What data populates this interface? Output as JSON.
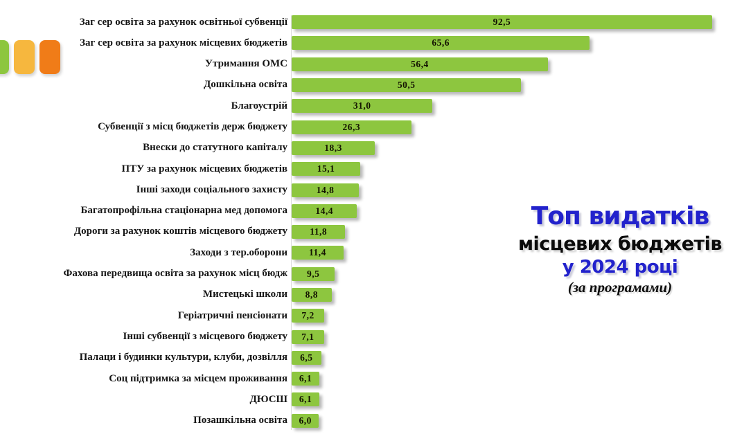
{
  "chart_data": {
    "type": "bar",
    "orientation": "horizontal",
    "title": "Топ видатків місцевих бюджетів у 2024 році (за програмами)",
    "xlabel": "",
    "ylabel": "",
    "xlim": [
      0,
      100
    ],
    "grid": false,
    "legend": false,
    "bar_color": "#8DC63F",
    "value_text_color": "#131300",
    "categories": [
      "Заг сер освіта за рахунок освітньої субвенції",
      "Заг сер освіта за рахунок місцевих бюджетів",
      "Утримання ОМС",
      "Дошкільна освіта",
      "Благоустрій",
      "Субвенції з місц бюджетів держ бюджету",
      "Внески до статутного капіталу",
      "ПТУ за рахунок місцевих бюджетів",
      "Інші заходи соціального захисту",
      "Багатопрофільна стаціонарна мед допомога",
      "Дороги за рахунок коштів місцевого бюджету",
      "Заходи з тер.оборони",
      "Фахова передвища освіта за рахунок місц бюдж",
      "Мистецькі школи",
      "Геріатричні пенсіонати",
      "Інші субвенції з місцевого бюджету",
      "Палаци і будинки культури, клуби, дозвілля",
      "Соц підтримка за місцем проживання",
      "ДЮСШ",
      "Позашкільна освіта"
    ],
    "values": [
      92.5,
      65.6,
      56.4,
      50.5,
      31.0,
      26.3,
      18.3,
      15.1,
      14.8,
      14.4,
      11.8,
      11.4,
      9.5,
      8.8,
      7.2,
      7.1,
      6.5,
      6.1,
      6.1,
      6.0
    ],
    "value_labels": [
      "92,5",
      "65,6",
      "56,4",
      "50,5",
      "31,0",
      "26,3",
      "18,3",
      "15,1",
      "14,8",
      "14,4",
      "11,8",
      "11,4",
      "9,5",
      "8,8",
      "7,2",
      "7,1",
      "6,5",
      "6,1",
      "6,1",
      "6,0"
    ]
  },
  "title_block": {
    "line1": "Топ видатків",
    "line2": "місцевих бюджетів",
    "line3": "у 2024 році",
    "line4": "(за програмами)",
    "accent_color": "#2222CC",
    "dark_color": "#0b0b0b"
  },
  "decor": {
    "squares": [
      {
        "name": "green-square",
        "color": "#8DC63F"
      },
      {
        "name": "yellow-square",
        "color": "#F6B73E"
      },
      {
        "name": "orange-square",
        "color": "#F07C18"
      }
    ]
  }
}
